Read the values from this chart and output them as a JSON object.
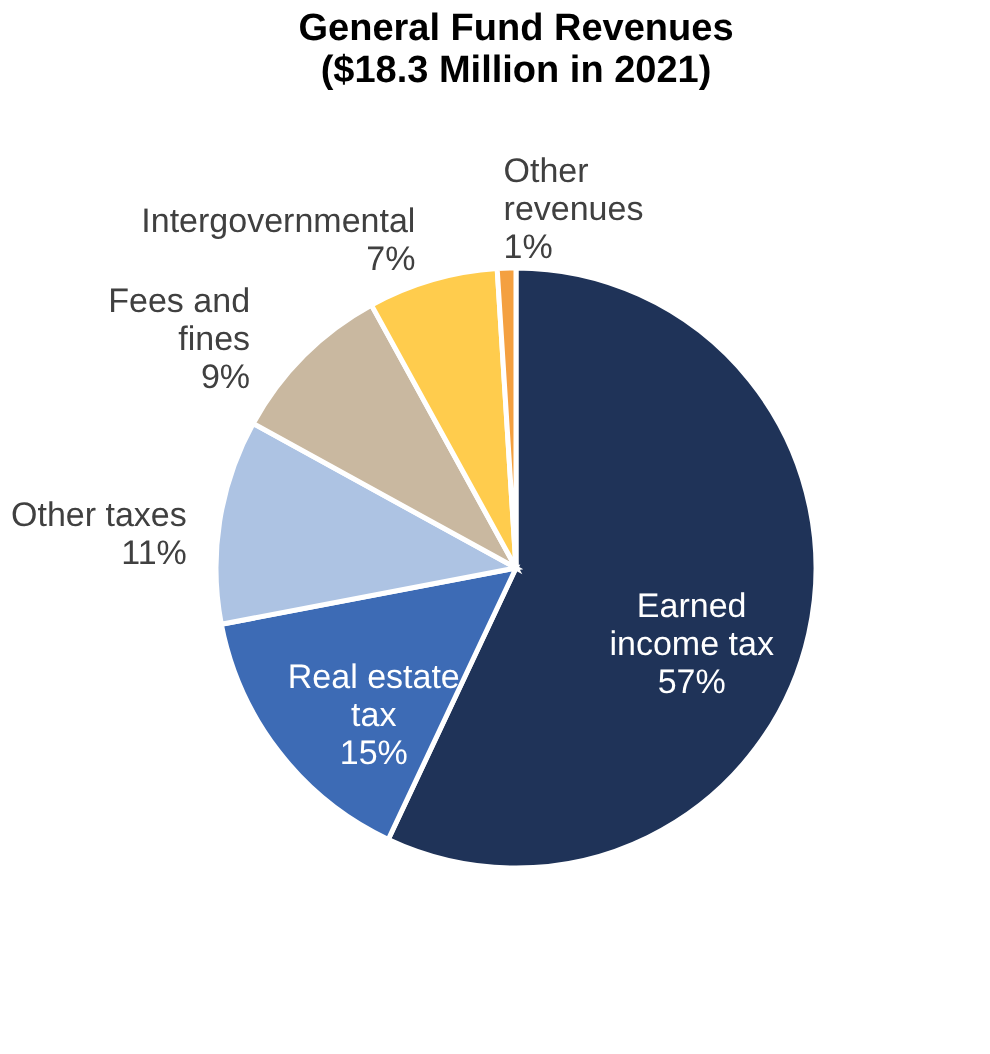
{
  "chart_data": {
    "type": "pie",
    "title": [
      "General Fund Revenues",
      "($18.3 Million in 2021)"
    ],
    "categories": [
      "Earned income tax",
      "Real estate tax",
      "Other taxes",
      "Fees and fines",
      "Intergovernmental",
      "Other revenues"
    ],
    "values": [
      57,
      15,
      11,
      9,
      7,
      1
    ],
    "colors": [
      "#1f3358",
      "#3d6bb5",
      "#adc3e3",
      "#c9b8a0",
      "#ffcc4d",
      "#f4a040"
    ],
    "value_labels": [
      "57%",
      "15%",
      "11%",
      "9%",
      "7%",
      "1%"
    ],
    "legend": false
  }
}
